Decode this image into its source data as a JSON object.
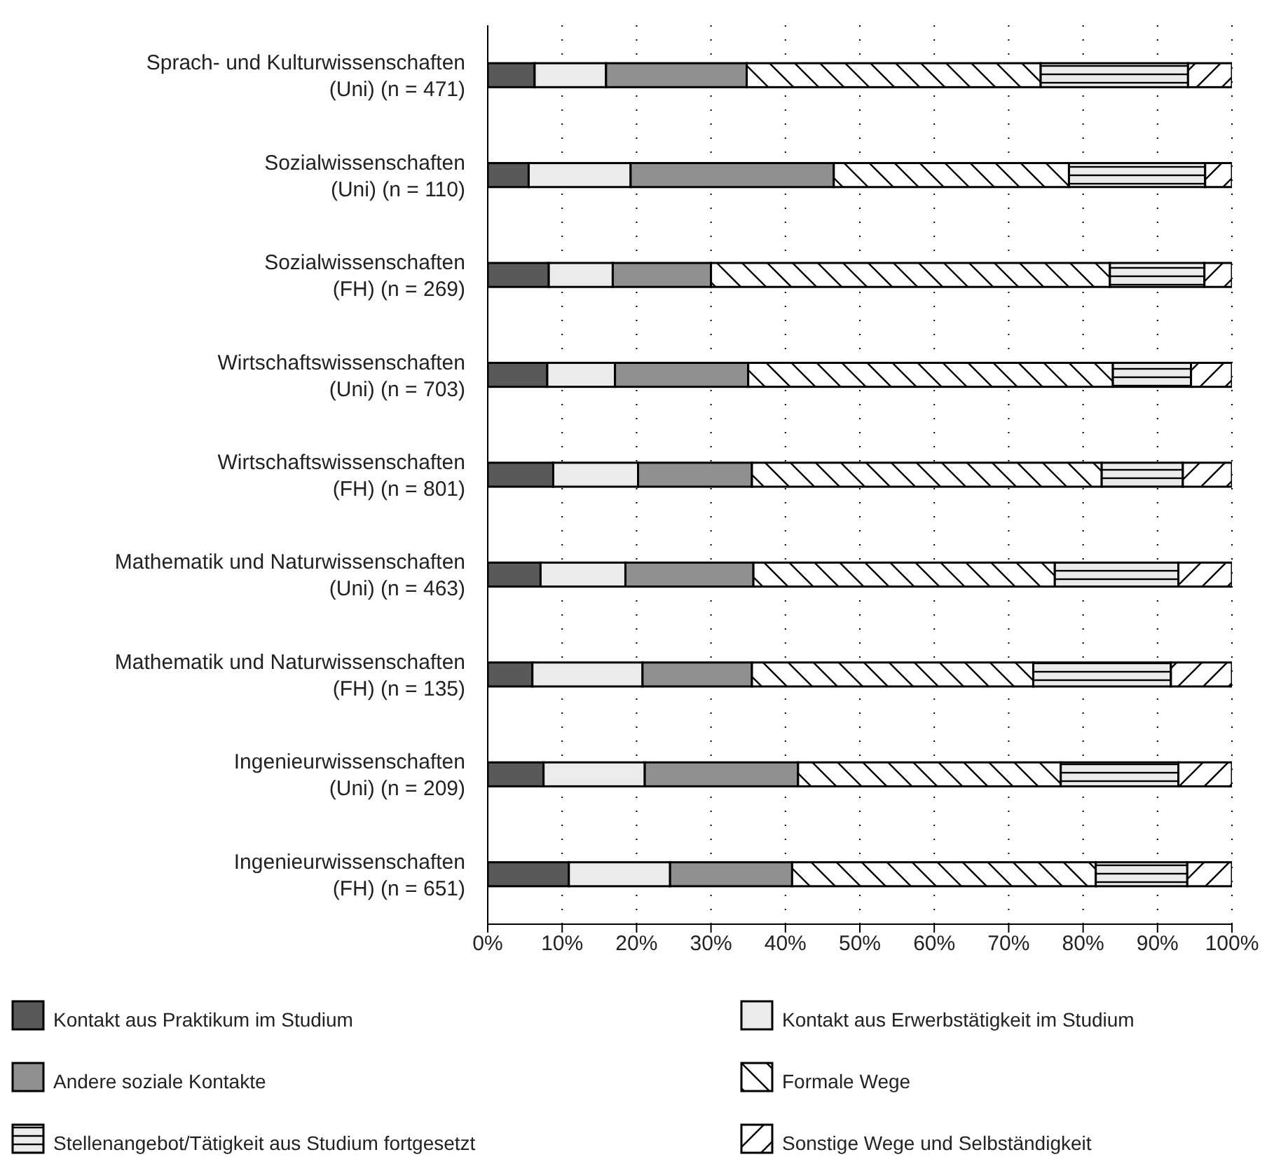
{
  "chart_data": {
    "type": "bar",
    "orientation": "horizontal",
    "stacked": true,
    "categories": [
      "Sprach- und Kulturwissenschaften (Uni) (n = 471)",
      "Sozialwissenschaften (Uni) (n = 110)",
      "Sozialwissenschaften (FH) (n = 269)",
      "Wirtschaftswissenschaften (Uni) (n = 703)",
      "Wirtschaftswissenschaften (FH) (n = 801)",
      "Mathematik und Naturwissenschaften (Uni) (n = 463)",
      "Mathematik und Naturwissenschaften (FH) (n = 135)",
      "Ingenieurwissenschaften (Uni) (n = 209)",
      "Ingenieurwissenschaften (FH) (n = 651)"
    ],
    "series": [
      {
        "name": "Kontakt aus Praktikum im Studium",
        "color": "#595959",
        "values": [
          6.3,
          5.5,
          8.2,
          8.0,
          8.8,
          7.1,
          6.0,
          7.5,
          10.9
        ]
      },
      {
        "name": "Kontakt aus Erwerbstätigkeit im Studium",
        "color": "#ebebeb",
        "values": [
          9.6,
          13.7,
          8.6,
          9.1,
          11.4,
          11.4,
          14.8,
          13.6,
          13.6
        ]
      },
      {
        "name": "Andere soziale Kontakte",
        "color": "#909090",
        "values": [
          18.9,
          27.3,
          13.2,
          17.9,
          15.3,
          17.2,
          14.7,
          20.6,
          16.4
        ]
      },
      {
        "name": "Formale Wege",
        "color": "#ffffff",
        "values": [
          39.5,
          31.6,
          53.6,
          49.0,
          47.0,
          40.5,
          37.8,
          35.3,
          40.8
        ]
      },
      {
        "name": "Stellenangebot/Tätigkeit aus Studium fortgesetzt",
        "color": "#ebebeb",
        "values": [
          19.8,
          18.3,
          12.7,
          10.5,
          10.9,
          16.6,
          18.5,
          15.8,
          12.3
        ]
      },
      {
        "name": "Sonstige Wege und Selbständigkeit",
        "color": "#ffffff",
        "values": [
          5.9,
          3.6,
          3.7,
          5.5,
          6.6,
          7.2,
          8.2,
          7.2,
          6.0
        ]
      }
    ],
    "xlim": [
      0,
      100
    ],
    "xticks": [
      {
        "value": 0,
        "label": "0%"
      },
      {
        "value": 10,
        "label": "10%"
      },
      {
        "value": 20,
        "label": "20%"
      },
      {
        "value": 30,
        "label": "30%"
      },
      {
        "value": 40,
        "label": "40%"
      },
      {
        "value": 50,
        "label": "50%"
      },
      {
        "value": 60,
        "label": "60%"
      },
      {
        "value": 70,
        "label": "70%"
      },
      {
        "value": 80,
        "label": "80%"
      },
      {
        "value": 90,
        "label": "90%"
      },
      {
        "value": 100,
        "label": "100%"
      }
    ],
    "grid": "x",
    "legend": "bottom"
  }
}
